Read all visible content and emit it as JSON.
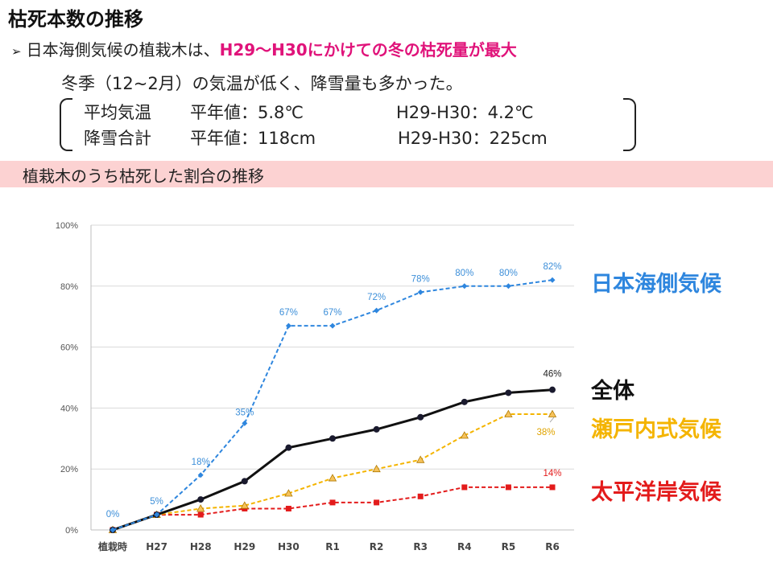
{
  "title": "枯死本数の推移",
  "bullet": {
    "prefix": "日本海側気候の植栽木は、",
    "highlight": "H29〜H30にかけての冬の枯死量が最大"
  },
  "subline": "冬季（12~2月）の気温が低く、降雪量も多かった。",
  "climate_rows": [
    {
      "label": "平均気温",
      "normal": "平年値：5.8℃",
      "h29_h30": "H29-H30：4.2℃"
    },
    {
      "label": "降雪合計",
      "normal": "平年値：118cm",
      "h29_h30": "H29-H30：225cm"
    }
  ],
  "banner": "植栽木のうち枯死した割合の推移",
  "chart_data": {
    "type": "line",
    "categories": [
      "植栽時",
      "H27",
      "H28",
      "H29",
      "H30",
      "R1",
      "R2",
      "R3",
      "R4",
      "R5",
      "R6"
    ],
    "ylim": [
      0,
      100
    ],
    "yticks": [
      0,
      20,
      40,
      60,
      80,
      100
    ],
    "ytick_labels": [
      "0%",
      "20%",
      "40%",
      "60%",
      "80%",
      "100%"
    ],
    "grid": true,
    "legend_placement": "right",
    "series": [
      {
        "name": "日本海側気候",
        "color": "#2e86de",
        "style": "dashed",
        "marker": "diamond",
        "values": [
          0,
          5,
          18,
          35,
          67,
          67,
          72,
          78,
          80,
          80,
          82
        ],
        "labels": [
          "0%",
          "5%",
          "18%",
          "35%",
          "67%",
          "67%",
          "72%",
          "78%",
          "80%",
          "80%",
          "82%"
        ]
      },
      {
        "name": "全体",
        "color": "#111111",
        "style": "solid",
        "marker": "circle",
        "values": [
          0,
          5,
          10,
          16,
          27,
          30,
          33,
          37,
          42,
          45,
          46
        ],
        "labels": [
          "",
          "",
          "",
          "",
          "",
          "",
          "",
          "",
          "",
          "",
          "46%"
        ]
      },
      {
        "name": "瀬戸内式気候",
        "color": "#f4b400",
        "style": "dashed",
        "marker": "triangle",
        "values": [
          0,
          5,
          7,
          8,
          12,
          17,
          20,
          23,
          31,
          38,
          38
        ],
        "labels": [
          "",
          "",
          "",
          "",
          "",
          "",
          "",
          "",
          "",
          "",
          "38%"
        ]
      },
      {
        "name": "太平洋岸気候",
        "color": "#e31b1b",
        "style": "dashed",
        "marker": "square",
        "values": [
          0,
          5,
          5,
          7,
          7,
          9,
          9,
          11,
          14,
          14,
          14
        ],
        "labels": [
          "",
          "",
          "",
          "",
          "",
          "",
          "",
          "",
          "",
          "",
          "14%"
        ]
      }
    ]
  }
}
